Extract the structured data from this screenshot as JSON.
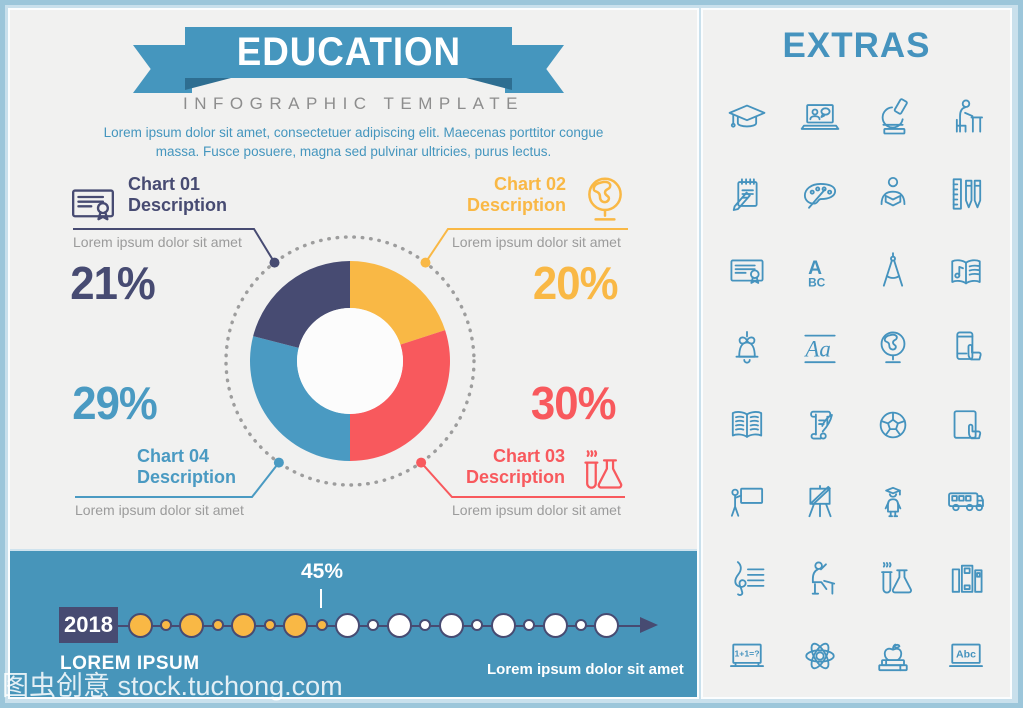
{
  "banner": {
    "title": "EDUCATION",
    "subtitle": "INFOGRAPHIC TEMPLATE"
  },
  "intro": {
    "line1": "Lorem ipsum dolor sit amet, consectetuer adipiscing elit. Maecenas porttitor congue",
    "line2": "massa. Fusce posuere, magna sed pulvinar ultricies, purus lectus."
  },
  "chart_data": {
    "type": "pie",
    "donut": true,
    "start_angle": "top",
    "direction": "clockwise",
    "slices": [
      {
        "label": "Chart 02 Description",
        "value": 20,
        "color": "#f9b845"
      },
      {
        "label": "Chart 03 Description",
        "value": 30,
        "color": "#f8595d"
      },
      {
        "label": "Chart 04 Description",
        "value": 29,
        "color": "#4a9ac2"
      },
      {
        "label": "Chart 01 Description",
        "value": 21,
        "color": "#474b72"
      }
    ]
  },
  "callouts": [
    {
      "title_line1": "Chart 01",
      "title_line2": "Description",
      "percent": "21%",
      "caption": "Lorem ipsum dolor sit amet",
      "color": "#474b72",
      "icon": "certificate"
    },
    {
      "title_line1": "Chart 02",
      "title_line2": "Description",
      "percent": "20%",
      "caption": "Lorem ipsum dolor sit amet",
      "color": "#f9b845",
      "icon": "globe"
    },
    {
      "title_line1": "Chart 03",
      "title_line2": "Description",
      "percent": "30%",
      "caption": "Lorem ipsum dolor sit amet",
      "color": "#f8595d",
      "icon": "chemistry-flasks"
    },
    {
      "title_line1": "Chart 04",
      "title_line2": "Description",
      "percent": "29%",
      "caption": "Lorem ipsum dolor sit amet",
      "color": "#4a9ac2",
      "icon": null
    }
  ],
  "timeline": {
    "year": "2018",
    "marker_percent": "45%",
    "filled_dots": 8,
    "total_dots": 19,
    "label_left": "LOREM IPSUM",
    "label_right": "Lorem ipsum dolor sit amet",
    "dot_fill_color": "#f9b845",
    "dot_empty_color": "#ffffff",
    "line_color": "#474b72"
  },
  "extras": {
    "title": "EXTRAS",
    "icon_color": "#4593be",
    "icons": [
      "graduation-cap",
      "video-call",
      "microscope",
      "student-at-desk",
      "notepad-pencil",
      "paint-palette",
      "person-reading",
      "ruler-and-pens",
      "certificate",
      "abc-letters",
      "drafting-compass",
      "music-book",
      "school-bell",
      "handwriting-aa",
      "globe",
      "smartphone-touch",
      "open-book",
      "scroll-and-quill",
      "soccer-ball",
      "tablet-touch",
      "teacher-at-board",
      "easel-and-brush",
      "graduate-student",
      "school-bus",
      "treble-clef",
      "student-raising-hand",
      "chemistry-flasks",
      "book-binders",
      "math-equation-board",
      "atom",
      "apple-on-books",
      "abc-slate"
    ]
  },
  "watermark": "图虫创意 stock.tuchong.com",
  "colors": {
    "accent_blue": "#4596be",
    "panel_bg": "#f1f1f0",
    "footer_bg": "#4795ba",
    "border_outer": "#9cc6da",
    "border_inner": "#c9e0ec",
    "caption_gray": "#9b9b9b",
    "dotted_ring": "#9d9d9d"
  }
}
